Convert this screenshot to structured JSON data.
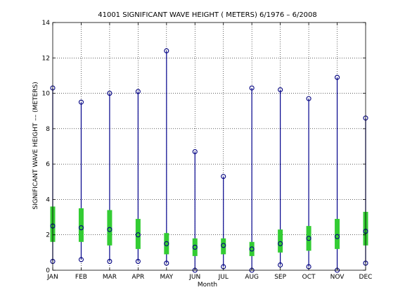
{
  "chart_data": {
    "type": "box",
    "title": "41001  SIGNIFICANT WAVE HEIGHT ( METERS) 6/1976 – 6/2008",
    "xlabel": "Month",
    "ylabel": "SIGNIFICANT WAVE HEIGHT –– (METERS)",
    "ylim": [
      0,
      14
    ],
    "yticks": [
      0,
      2,
      4,
      6,
      8,
      10,
      12,
      14
    ],
    "grid": true,
    "categories": [
      "JAN",
      "FEB",
      "MAR",
      "APR",
      "MAY",
      "JUN",
      "JUL",
      "AUG",
      "SEP",
      "OCT",
      "NOV",
      "DEC"
    ],
    "min": [
      0.5,
      0.6,
      0.5,
      0.5,
      0.4,
      0.0,
      0.2,
      0.0,
      0.3,
      0.2,
      0.0,
      0.4
    ],
    "max": [
      10.3,
      9.5,
      10.0,
      10.1,
      12.4,
      6.7,
      5.3,
      10.3,
      10.2,
      9.7,
      10.9,
      8.6
    ],
    "q1": [
      1.6,
      1.6,
      1.4,
      1.2,
      0.9,
      0.8,
      0.9,
      0.8,
      1.0,
      1.1,
      1.2,
      1.4
    ],
    "q3": [
      3.6,
      3.5,
      3.4,
      2.9,
      2.1,
      1.8,
      1.8,
      1.6,
      2.3,
      2.5,
      2.9,
      3.3
    ],
    "median": [
      2.5,
      2.4,
      2.3,
      2.0,
      1.5,
      1.3,
      1.4,
      1.2,
      1.5,
      1.8,
      1.9,
      2.2
    ],
    "colors": {
      "whisker": "#00008B",
      "box": "#33CC33",
      "marker": "#000080",
      "grid": "#000000"
    }
  }
}
